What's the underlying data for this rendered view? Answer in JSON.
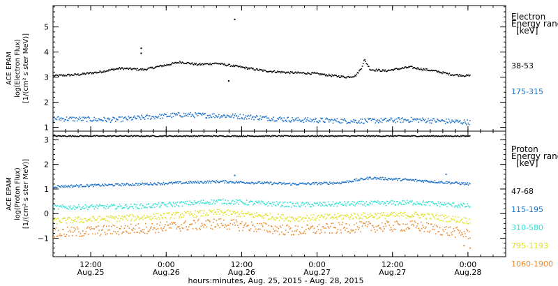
{
  "chart_data": [
    {
      "type": "scatter",
      "panel": "top",
      "ylabel_lines": [
        "ACE EPAM",
        "log(Electron Flux)",
        "[1/(cm² s ster MeV)]"
      ],
      "ylim": [
        0.85,
        5.85
      ],
      "yticks": [
        1,
        2,
        3,
        4,
        5
      ],
      "legend_title_lines": [
        "Electron",
        "Energy ranges",
        "[keV]"
      ],
      "series": [
        {
          "name": "38-53",
          "color": "#000000",
          "keyframes": [
            [
              0,
              3.05
            ],
            [
              0.08,
              3.1
            ],
            [
              0.15,
              3.2
            ],
            [
              0.22,
              3.35
            ],
            [
              0.3,
              3.3
            ],
            [
              0.36,
              3.45
            ],
            [
              0.42,
              3.6
            ],
            [
              0.48,
              3.5
            ],
            [
              0.54,
              3.55
            ],
            [
              0.62,
              3.4
            ],
            [
              0.7,
              3.25
            ],
            [
              0.78,
              3.18
            ],
            [
              0.86,
              3.15
            ],
            [
              0.93,
              3.05
            ],
            [
              0.97,
              3.0
            ],
            [
              1.0,
              3.05
            ],
            [
              1.02,
              3.35
            ],
            [
              1.03,
              3.7
            ],
            [
              1.05,
              3.3
            ],
            [
              1.1,
              3.25
            ],
            [
              1.18,
              3.4
            ],
            [
              1.26,
              3.25
            ],
            [
              1.32,
              3.1
            ],
            [
              1.38,
              3.05
            ]
          ],
          "noise": 0.04,
          "outliers": [
            [
              0.29,
              4.15
            ],
            [
              0.29,
              3.95
            ],
            [
              0.58,
              2.85
            ],
            [
              0.6,
              5.3
            ]
          ]
        },
        {
          "name": "175-315",
          "color": "#1a70c8",
          "keyframes": [
            [
              0,
              1.35
            ],
            [
              0.2,
              1.3
            ],
            [
              0.42,
              1.5
            ],
            [
              0.6,
              1.45
            ],
            [
              0.8,
              1.3
            ],
            [
              1.0,
              1.25
            ],
            [
              1.2,
              1.3
            ],
            [
              1.38,
              1.2
            ]
          ],
          "noise": 0.1,
          "outliers": []
        }
      ]
    },
    {
      "type": "scatter",
      "panel": "bottom",
      "ylabel_lines": [
        "ACE EPAM",
        "log(Proton Flux)",
        "[1/(cm² s ster MeV)]"
      ],
      "ylim": [
        -1.75,
        3.35
      ],
      "yticks": [
        3,
        2,
        1,
        0,
        -1
      ],
      "legend_title_lines": [
        "Proton",
        "Energy ranges",
        "[keV]"
      ],
      "series": [
        {
          "name": "47-68",
          "color": "#000000",
          "keyframes": [
            [
              0,
              3.15
            ],
            [
              1.38,
              3.15
            ]
          ],
          "noise": 0.02,
          "outliers": []
        },
        {
          "name": "115-195",
          "color": "#1a70c8",
          "keyframes": [
            [
              0,
              1.1
            ],
            [
              0.3,
              1.2
            ],
            [
              0.55,
              1.3
            ],
            [
              0.8,
              1.2
            ],
            [
              0.95,
              1.25
            ],
            [
              1.05,
              1.45
            ],
            [
              1.2,
              1.35
            ],
            [
              1.38,
              1.2
            ]
          ],
          "noise": 0.05,
          "outliers": [
            [
              0.6,
              1.55
            ],
            [
              1.3,
              1.6
            ]
          ]
        },
        {
          "name": "310-580",
          "color": "#30e0d0",
          "keyframes": [
            [
              0,
              0.25
            ],
            [
              0.3,
              0.3
            ],
            [
              0.55,
              0.5
            ],
            [
              0.8,
              0.35
            ],
            [
              1.0,
              0.4
            ],
            [
              1.2,
              0.45
            ],
            [
              1.38,
              0.3
            ]
          ],
          "noise": 0.1,
          "outliers": []
        },
        {
          "name": "795-1193",
          "color": "#e0e020",
          "keyframes": [
            [
              0,
              -0.3
            ],
            [
              0.3,
              -0.15
            ],
            [
              0.55,
              0.05
            ],
            [
              0.8,
              -0.2
            ],
            [
              1.0,
              -0.1
            ],
            [
              1.2,
              -0.05
            ],
            [
              1.38,
              -0.3
            ]
          ],
          "noise": 0.13,
          "outliers": []
        },
        {
          "name": "1060-1900",
          "color": "#e8882a",
          "keyframes": [
            [
              0,
              -0.8
            ],
            [
              0.3,
              -0.6
            ],
            [
              0.55,
              -0.4
            ],
            [
              0.8,
              -0.7
            ],
            [
              1.0,
              -0.55
            ],
            [
              1.2,
              -0.5
            ],
            [
              1.38,
              -0.85
            ]
          ],
          "noise": 0.22,
          "outliers": [
            [
              1.36,
              -1.3
            ],
            [
              1.38,
              -1.4
            ]
          ]
        }
      ]
    }
  ],
  "x_axis": {
    "ticks": [
      {
        "pos": 0.125,
        "line1": "12:00",
        "line2": "Aug.25"
      },
      {
        "pos": 0.375,
        "line1": "0:00",
        "line2": "Aug.26"
      },
      {
        "pos": 0.625,
        "line1": "12:00",
        "line2": "Aug.26"
      },
      {
        "pos": 0.875,
        "line1": "0:00",
        "line2": "Aug.27"
      },
      {
        "pos": 1.125,
        "line1": "12:00",
        "line2": "Aug.27"
      },
      {
        "pos": 1.375,
        "line1": "0:00",
        "line2": "Aug.28"
      }
    ],
    "xlim": [
      0.0,
      1.5
    ],
    "minor_step": 0.0416667,
    "label": "hours:minutes, Aug. 25, 2015 - Aug. 28, 2015"
  }
}
